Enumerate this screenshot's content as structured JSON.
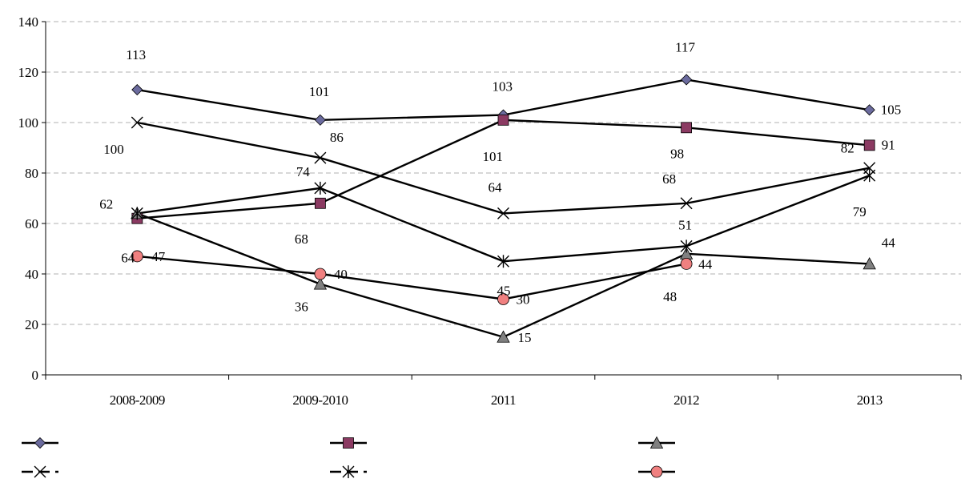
{
  "chart_data": {
    "type": "line",
    "title": "",
    "xlabel": "",
    "ylabel": "",
    "categories": [
      "2008-2009",
      "2009-2010",
      "2011",
      "2012",
      "2013"
    ],
    "ylim": [
      0,
      140
    ],
    "yticks": [
      0,
      20,
      40,
      60,
      80,
      100,
      120,
      140
    ],
    "grid": "horizontal dashed",
    "legend_position": "bottom",
    "line_color": "#000000",
    "series": [
      {
        "values": [
          113,
          101,
          103,
          117,
          105
        ],
        "marker": "diamond",
        "marker_color": "#6b6b9e",
        "dashed": false
      },
      {
        "values": [
          62,
          68,
          101,
          98,
          91
        ],
        "marker": "square",
        "marker_color": "#8b3a62",
        "dashed": false
      },
      {
        "values": [
          64,
          36,
          15,
          48,
          44
        ],
        "marker": "triangle",
        "marker_color": "#808080",
        "dashed": false
      },
      {
        "values": [
          100,
          86,
          64,
          68,
          82
        ],
        "marker": "x",
        "marker_color": "#000000",
        "dashed": true
      },
      {
        "values": [
          64,
          74,
          45,
          51,
          79
        ],
        "marker": "asterisk",
        "marker_color": "#000000",
        "dashed": true
      },
      {
        "values": [
          47,
          40,
          30,
          44,
          null
        ],
        "marker": "circle",
        "marker_color": "#f08080",
        "dashed": false
      }
    ],
    "data_labels": [
      {
        "text": "113",
        "series": 0,
        "point": 0,
        "dx": -14,
        "dy": -38
      },
      {
        "text": "101",
        "series": 0,
        "point": 1,
        "dx": -14,
        "dy": -30
      },
      {
        "text": "103",
        "series": 0,
        "point": 2,
        "dx": -14,
        "dy": -30
      },
      {
        "text": "117",
        "series": 0,
        "point": 3,
        "dx": -14,
        "dy": -35
      },
      {
        "text": "105",
        "series": 0,
        "point": 4,
        "dx": 14,
        "dy": 5
      },
      {
        "text": "62",
        "series": 1,
        "point": 0,
        "dx": -47,
        "dy": -12
      },
      {
        "text": "68",
        "series": 1,
        "point": 1,
        "dx": -32,
        "dy": 50
      },
      {
        "text": "101",
        "series": 1,
        "point": 2,
        "dx": -26,
        "dy": 51
      },
      {
        "text": "98",
        "series": 1,
        "point": 3,
        "dx": -20,
        "dy": 38
      },
      {
        "text": "91",
        "series": 1,
        "point": 4,
        "dx": 15,
        "dy": 5
      },
      {
        "text": "64",
        "series": 2,
        "point": 0,
        "dx": -20,
        "dy": 61
      },
      {
        "text": "36",
        "series": 2,
        "point": 1,
        "dx": -32,
        "dy": 34
      },
      {
        "text": "15",
        "series": 2,
        "point": 2,
        "dx": 18,
        "dy": 6
      },
      {
        "text": "48",
        "series": 2,
        "point": 3,
        "dx": -29,
        "dy": 59
      },
      {
        "text": "44",
        "series": 2,
        "point": 4,
        "dx": 15,
        "dy": -21
      },
      {
        "text": "100",
        "series": 3,
        "point": 0,
        "dx": -42,
        "dy": 39
      },
      {
        "text": "86",
        "series": 3,
        "point": 1,
        "dx": 12,
        "dy": -20
      },
      {
        "text": "64",
        "series": 3,
        "point": 2,
        "dx": -19,
        "dy": -27
      },
      {
        "text": "68",
        "series": 3,
        "point": 3,
        "dx": -30,
        "dy": -25
      },
      {
        "text": "82",
        "series": 3,
        "point": 4,
        "dx": -36,
        "dy": -19
      },
      {
        "text": "74",
        "series": 4,
        "point": 1,
        "dx": -30,
        "dy": -15
      },
      {
        "text": "45",
        "series": 4,
        "point": 2,
        "dx": -8,
        "dy": 42
      },
      {
        "text": "51",
        "series": 4,
        "point": 3,
        "dx": -10,
        "dy": -21
      },
      {
        "text": "79",
        "series": 4,
        "point": 4,
        "dx": -21,
        "dy": 51
      },
      {
        "text": "47",
        "series": 5,
        "point": 0,
        "dx": 18,
        "dy": 6
      },
      {
        "text": "40",
        "series": 5,
        "point": 1,
        "dx": 17,
        "dy": 6
      },
      {
        "text": "30",
        "series": 5,
        "point": 2,
        "dx": 16,
        "dy": 6
      },
      {
        "text": "44",
        "series": 5,
        "point": 3,
        "dx": 15,
        "dy": 6
      }
    ]
  }
}
